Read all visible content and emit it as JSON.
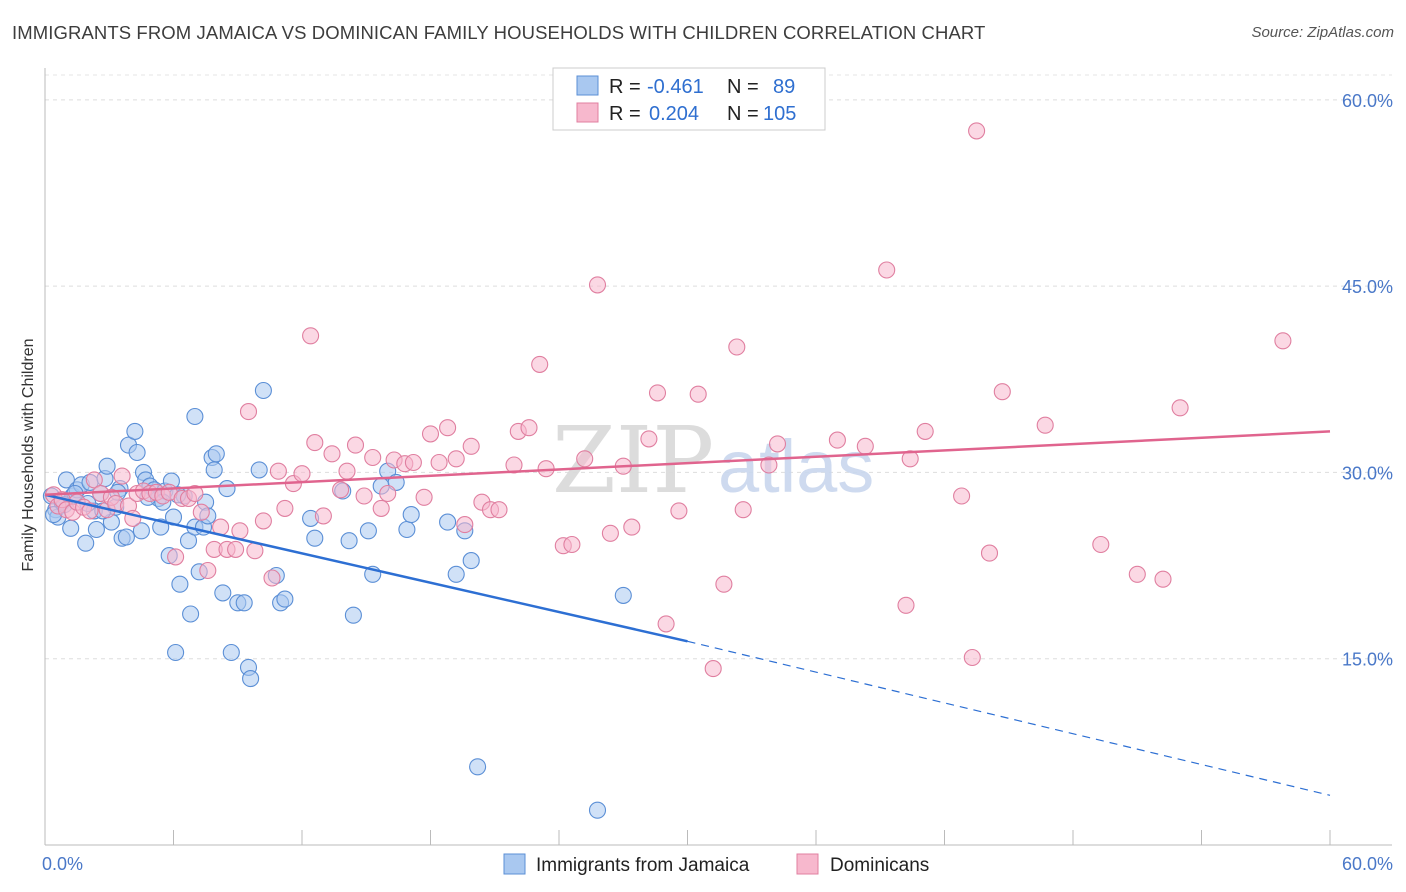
{
  "chart_data": {
    "type": "scatter",
    "title": "IMMIGRANTS FROM JAMAICA VS DOMINICAN FAMILY HOUSEHOLDS WITH CHILDREN CORRELATION CHART",
    "source": "Source: ZipAtlas.com",
    "ylabel": "Family Households with Children",
    "xlim": [
      0,
      60
    ],
    "ylim": [
      0,
      62
    ],
    "x_tick_labels": [
      "0.0%",
      "60.0%"
    ],
    "y_ticks": [
      15,
      30,
      45,
      60
    ],
    "y_tick_labels": [
      "15.0%",
      "30.0%",
      "45.0%",
      "60.0%"
    ],
    "watermark": [
      "ZIP",
      "atlas"
    ],
    "legend": {
      "rows": [
        {
          "r_label": "R =",
          "r_value": "-0.461",
          "n_label": "N =",
          "n_value": "89",
          "color": "#a9c8f0"
        },
        {
          "r_label": "R =",
          "r_value": "0.204",
          "n_label": "N =",
          "n_value": "105",
          "color": "#f7b8cd"
        }
      ]
    },
    "series": [
      {
        "name": "Immigrants from Jamaica",
        "color": "#a9c8f0",
        "stroke": "#5b8fd6",
        "trend": {
          "x0": 0,
          "y0": 28.2,
          "x1": 30,
          "y1": 16.4,
          "dash_to_x": 60,
          "dash_to_y": 4.0,
          "color": "#2d6fd3"
        },
        "points": [
          [
            0.3,
            28.1
          ],
          [
            0.5,
            27.0
          ],
          [
            0.6,
            26.4
          ],
          [
            0.8,
            27.6
          ],
          [
            1.0,
            29.4
          ],
          [
            1.2,
            25.5
          ],
          [
            1.3,
            28.1
          ],
          [
            1.5,
            28.6
          ],
          [
            1.7,
            29.0
          ],
          [
            1.9,
            24.3
          ],
          [
            2.1,
            29.2
          ],
          [
            2.3,
            26.9
          ],
          [
            2.4,
            25.4
          ],
          [
            2.6,
            28.3
          ],
          [
            2.8,
            29.5
          ],
          [
            2.9,
            30.5
          ],
          [
            3.1,
            26.0
          ],
          [
            3.3,
            27.2
          ],
          [
            3.5,
            28.7
          ],
          [
            3.6,
            24.7
          ],
          [
            3.8,
            24.8
          ],
          [
            3.9,
            32.2
          ],
          [
            4.2,
            33.3
          ],
          [
            4.3,
            31.6
          ],
          [
            4.5,
            25.3
          ],
          [
            4.6,
            30.0
          ],
          [
            4.7,
            29.4
          ],
          [
            4.9,
            28.9
          ],
          [
            5.1,
            28.6
          ],
          [
            5.3,
            27.9
          ],
          [
            5.4,
            25.6
          ],
          [
            5.6,
            28.5
          ],
          [
            5.8,
            23.3
          ],
          [
            5.9,
            29.3
          ],
          [
            6.0,
            26.4
          ],
          [
            6.1,
            15.5
          ],
          [
            6.3,
            21.0
          ],
          [
            6.5,
            28.1
          ],
          [
            6.7,
            24.5
          ],
          [
            6.8,
            18.6
          ],
          [
            7.0,
            34.5
          ],
          [
            7.0,
            25.6
          ],
          [
            7.2,
            22.0
          ],
          [
            7.4,
            25.6
          ],
          [
            7.5,
            27.6
          ],
          [
            7.6,
            26.5
          ],
          [
            7.8,
            31.2
          ],
          [
            7.9,
            30.2
          ],
          [
            8.0,
            31.5
          ],
          [
            8.3,
            20.3
          ],
          [
            8.5,
            28.7
          ],
          [
            8.7,
            15.5
          ],
          [
            9.0,
            19.5
          ],
          [
            9.3,
            19.5
          ],
          [
            9.5,
            14.3
          ],
          [
            9.6,
            13.4
          ],
          [
            10.0,
            30.2
          ],
          [
            10.2,
            36.6
          ],
          [
            10.8,
            21.7
          ],
          [
            11.0,
            19.5
          ],
          [
            11.2,
            19.8
          ],
          [
            12.4,
            26.3
          ],
          [
            12.6,
            24.7
          ],
          [
            13.9,
            28.5
          ],
          [
            14.2,
            24.5
          ],
          [
            14.4,
            18.5
          ],
          [
            15.1,
            25.3
          ],
          [
            15.3,
            21.8
          ],
          [
            15.7,
            28.9
          ],
          [
            16.0,
            30.1
          ],
          [
            16.4,
            29.2
          ],
          [
            16.9,
            25.4
          ],
          [
            17.1,
            26.6
          ],
          [
            18.8,
            26.0
          ],
          [
            19.2,
            21.8
          ],
          [
            19.6,
            25.3
          ],
          [
            19.9,
            22.9
          ],
          [
            20.2,
            6.3
          ],
          [
            25.8,
            2.8
          ],
          [
            27.0,
            20.1
          ],
          [
            0.4,
            26.6
          ],
          [
            0.9,
            27.4
          ],
          [
            1.4,
            28.3
          ],
          [
            2.0,
            27.5
          ],
          [
            2.7,
            26.9
          ],
          [
            3.4,
            28.4
          ],
          [
            4.8,
            28.0
          ],
          [
            5.5,
            27.6
          ],
          [
            6.2,
            28.2
          ]
        ]
      },
      {
        "name": "Dominicans",
        "color": "#f7b8cd",
        "stroke": "#e07fa0",
        "trend": {
          "x0": 0,
          "y0": 28.2,
          "x1": 60,
          "y1": 33.3,
          "color": "#e0648e"
        },
        "points": [
          [
            0.4,
            28.2
          ],
          [
            0.6,
            27.3
          ],
          [
            0.8,
            27.8
          ],
          [
            1.0,
            27.0
          ],
          [
            1.3,
            26.8
          ],
          [
            1.5,
            27.6
          ],
          [
            1.8,
            27.2
          ],
          [
            2.1,
            26.9
          ],
          [
            2.3,
            29.4
          ],
          [
            2.6,
            28.3
          ],
          [
            2.9,
            27.0
          ],
          [
            3.1,
            28.0
          ],
          [
            3.3,
            27.5
          ],
          [
            3.6,
            29.7
          ],
          [
            3.9,
            27.3
          ],
          [
            4.1,
            26.3
          ],
          [
            4.3,
            28.3
          ],
          [
            4.6,
            28.5
          ],
          [
            4.9,
            28.3
          ],
          [
            5.2,
            28.4
          ],
          [
            5.5,
            28.1
          ],
          [
            5.8,
            28.4
          ],
          [
            6.1,
            23.2
          ],
          [
            6.4,
            27.9
          ],
          [
            6.7,
            27.9
          ],
          [
            7.0,
            28.3
          ],
          [
            7.3,
            26.8
          ],
          [
            7.6,
            22.1
          ],
          [
            7.9,
            23.8
          ],
          [
            8.2,
            25.6
          ],
          [
            8.5,
            23.8
          ],
          [
            8.9,
            23.8
          ],
          [
            9.1,
            25.3
          ],
          [
            9.5,
            34.9
          ],
          [
            9.8,
            23.7
          ],
          [
            10.2,
            26.1
          ],
          [
            10.6,
            21.5
          ],
          [
            10.9,
            30.1
          ],
          [
            11.2,
            27.1
          ],
          [
            11.6,
            29.1
          ],
          [
            12.0,
            29.9
          ],
          [
            12.4,
            41.0
          ],
          [
            12.6,
            32.4
          ],
          [
            13.0,
            26.5
          ],
          [
            13.4,
            31.5
          ],
          [
            13.8,
            28.6
          ],
          [
            14.1,
            30.1
          ],
          [
            14.5,
            32.2
          ],
          [
            14.9,
            28.1
          ],
          [
            15.3,
            31.2
          ],
          [
            15.7,
            27.1
          ],
          [
            16.0,
            28.3
          ],
          [
            16.3,
            31.0
          ],
          [
            16.8,
            30.7
          ],
          [
            17.2,
            30.8
          ],
          [
            17.7,
            28.0
          ],
          [
            18.0,
            33.1
          ],
          [
            18.4,
            30.8
          ],
          [
            18.8,
            33.6
          ],
          [
            19.2,
            31.1
          ],
          [
            19.6,
            25.8
          ],
          [
            19.9,
            32.1
          ],
          [
            20.4,
            27.6
          ],
          [
            20.8,
            27.0
          ],
          [
            21.2,
            27.0
          ],
          [
            21.9,
            30.6
          ],
          [
            22.1,
            33.3
          ],
          [
            22.6,
            33.6
          ],
          [
            23.1,
            38.7
          ],
          [
            23.4,
            30.3
          ],
          [
            24.2,
            24.1
          ],
          [
            24.6,
            24.2
          ],
          [
            25.2,
            31.1
          ],
          [
            25.8,
            45.1
          ],
          [
            26.4,
            25.1
          ],
          [
            27.0,
            30.5
          ],
          [
            27.4,
            25.6
          ],
          [
            28.2,
            32.7
          ],
          [
            28.6,
            36.4
          ],
          [
            29.0,
            17.8
          ],
          [
            29.6,
            26.9
          ],
          [
            30.5,
            36.3
          ],
          [
            31.2,
            14.2
          ],
          [
            31.7,
            21.0
          ],
          [
            32.3,
            40.1
          ],
          [
            32.6,
            27.0
          ],
          [
            33.8,
            30.6
          ],
          [
            34.2,
            32.3
          ],
          [
            37.0,
            32.6
          ],
          [
            38.3,
            32.1
          ],
          [
            39.3,
            46.3
          ],
          [
            40.2,
            19.3
          ],
          [
            40.4,
            31.1
          ],
          [
            41.1,
            33.3
          ],
          [
            42.8,
            28.1
          ],
          [
            43.3,
            15.1
          ],
          [
            43.5,
            57.5
          ],
          [
            44.1,
            23.5
          ],
          [
            44.7,
            36.5
          ],
          [
            46.7,
            33.8
          ],
          [
            49.3,
            24.2
          ],
          [
            51.0,
            21.8
          ],
          [
            52.2,
            21.4
          ],
          [
            53.0,
            35.2
          ],
          [
            57.8,
            40.6
          ]
        ]
      }
    ]
  },
  "bottom_legend": [
    {
      "label": "Immigrants from Jamaica",
      "color": "#a9c8f0"
    },
    {
      "label": "Dominicans",
      "color": "#f7b8cd"
    }
  ]
}
